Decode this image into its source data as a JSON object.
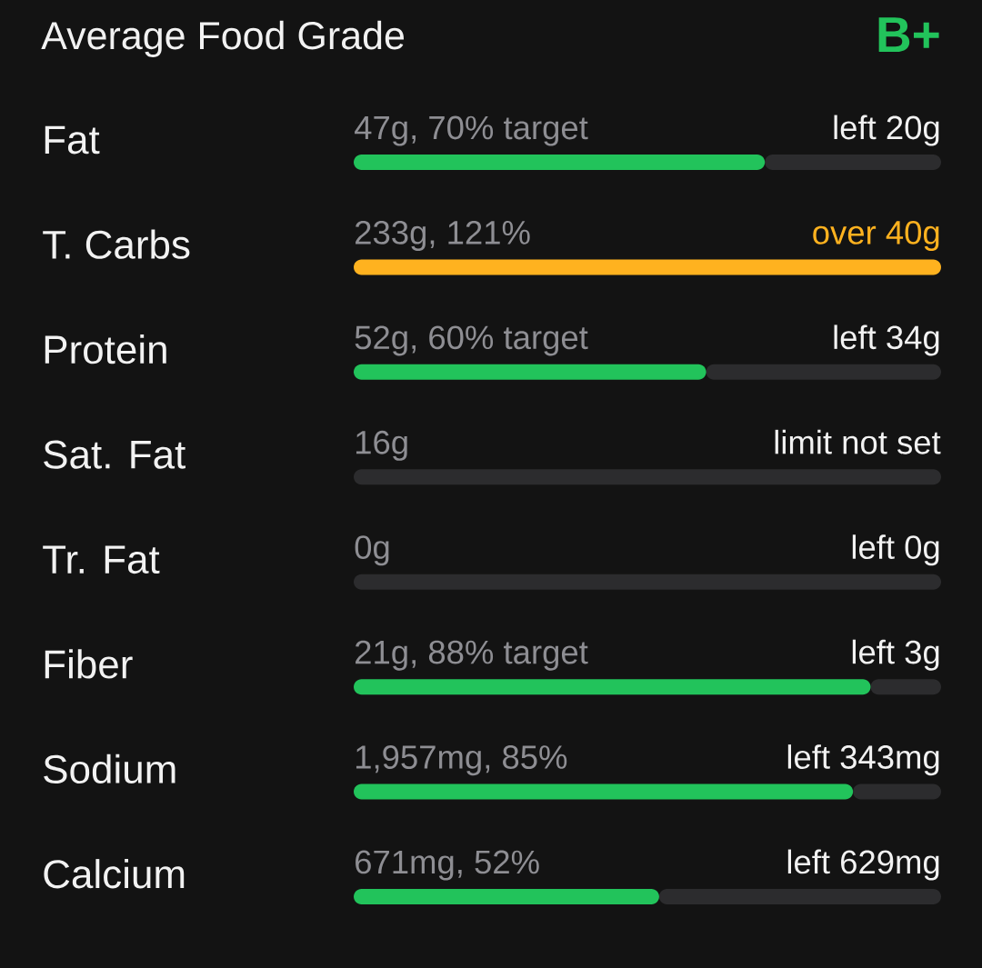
{
  "chart_data": {
    "type": "bar",
    "orientation": "horizontal",
    "stacked": true,
    "title": "Average Food Grade",
    "annotations": [
      "B+",
      "233g, 121%",
      "16g",
      "0g",
      "over 40g"
    ],
    "categories": [
      "Fat",
      "T. Carbs",
      "Protein",
      "Sat. Fat",
      "Tr. Fat",
      "Fiber",
      "Sodium",
      "Calcium"
    ],
    "xlim": [
      0,
      100
    ],
    "tick_labels": "y",
    "series": [
      {
        "colors": [
          "#22c35b",
          "#ffb21f",
          "#22c35b",
          "#22c35b",
          "#22c35b",
          "#22c35b",
          "#22c35b",
          "#22c35b"
        ],
        "values": [
          70,
          100,
          60,
          null,
          null,
          88,
          85,
          52
        ],
        "value_labels": [
          "47g, 70% target",
          null,
          "52g, 60% target",
          null,
          null,
          "21g, 88% target",
          "1,957mg, 85%",
          "671mg, 52%"
        ]
      },
      {
        "color": "#2c2c2e",
        "values": [
          30,
          null,
          40,
          100,
          100,
          12,
          15,
          48
        ],
        "value_labels": [
          "left 20g",
          null,
          "left 34g",
          "limit not set",
          "left 0g",
          "left 3g",
          "left 343mg",
          "left 629mg"
        ]
      }
    ]
  }
}
